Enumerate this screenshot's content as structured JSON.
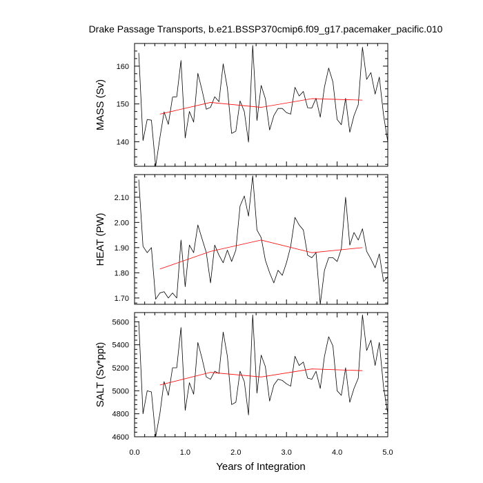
{
  "title": "Drake Passage Transports, b.e21.BSSP370cmip6.f09_g17.pacemaker_pacific.010",
  "colors": {
    "raw": "#000000",
    "smooth": "#ff0000",
    "frame": "#000000"
  },
  "chart_data": {
    "type": "line",
    "shared_x": {
      "label": "Years of Integration",
      "range": [
        0,
        5
      ],
      "ticks": [
        0,
        1,
        2,
        3,
        4,
        5
      ],
      "tick_labels": [
        "0.0",
        "1.0",
        "2.0",
        "3.0",
        "4.0",
        "5.0"
      ]
    },
    "panels": [
      {
        "ylabel": "MASS (Sv)",
        "ylim": [
          133.5,
          166
        ],
        "yticks": [
          140,
          150,
          160
        ],
        "ytick_labels": [
          "140",
          "150",
          "160"
        ],
        "series": [
          {
            "name": "raw",
            "x": [
              0.083,
              0.167,
              0.25,
              0.333,
              0.417,
              0.5,
              0.583,
              0.667,
              0.75,
              0.833,
              0.917,
              1.0,
              1.083,
              1.167,
              1.25,
              1.333,
              1.417,
              1.5,
              1.583,
              1.667,
              1.75,
              1.833,
              1.917,
              2.0,
              2.083,
              2.167,
              2.25,
              2.333,
              2.417,
              2.5,
              2.583,
              2.667,
              2.75,
              2.833,
              2.917,
              3.0,
              3.083,
              3.167,
              3.25,
              3.333,
              3.417,
              3.5,
              3.583,
              3.667,
              3.75,
              3.833,
              3.917,
              4.0,
              4.083,
              4.167,
              4.25,
              4.333,
              4.417,
              4.5,
              4.583,
              4.667,
              4.75,
              4.833,
              4.917,
              5.0
            ],
            "values": [
              163.5,
              140.3,
              145.9,
              145.7,
              133.5,
              141.0,
              147.9,
              144.6,
              151.8,
              151.9,
              161.5,
              141.0,
              148.0,
              145.2,
              158.1,
              153.6,
              148.6,
              149.1,
              151.9,
              150.6,
              160.6,
              154.2,
              142.2,
              142.8,
              150.8,
              148.0,
              139.9,
              165.5,
              145.6,
              154.9,
              151.4,
              143.1,
              146.9,
              148.8,
              148.8,
              147.7,
              147.3,
              154.4,
              152.1,
              153.3,
              149.0,
              148.9,
              151.5,
              146.5,
              154.5,
              159.5,
              155.8,
              145.9,
              144.5,
              151.5,
              142.5,
              146.9,
              149.8,
              165.0,
              156.5,
              158.3,
              152.6,
              157.1,
              147.0,
              140.0
            ]
          },
          {
            "name": "smoothed",
            "x": [
              0.5,
              1.5,
              2.5,
              3.5,
              4.5
            ],
            "values": [
              147.3,
              150.4,
              149.1,
              151.4,
              151.0
            ]
          }
        ]
      },
      {
        "ylabel": "HEAT (PW)",
        "ylim": [
          1.675,
          2.19
        ],
        "yticks": [
          1.7,
          1.8,
          1.9,
          2.0,
          2.1
        ],
        "ytick_labels": [
          "1.70",
          "1.80",
          "1.90",
          "2.00",
          "2.10"
        ],
        "series": [
          {
            "name": "raw",
            "x": [
              0.083,
              0.167,
              0.25,
              0.333,
              0.417,
              0.5,
              0.583,
              0.667,
              0.75,
              0.833,
              0.917,
              1.0,
              1.083,
              1.167,
              1.25,
              1.333,
              1.417,
              1.5,
              1.583,
              1.667,
              1.75,
              1.833,
              1.917,
              2.0,
              2.083,
              2.167,
              2.25,
              2.333,
              2.417,
              2.5,
              2.583,
              2.667,
              2.75,
              2.833,
              2.917,
              3.0,
              3.083,
              3.167,
              3.25,
              3.333,
              3.417,
              3.5,
              3.583,
              3.667,
              3.75,
              3.833,
              3.917,
              4.0,
              4.083,
              4.167,
              4.25,
              4.333,
              4.417,
              4.5,
              4.583,
              4.667,
              4.75,
              4.833,
              4.917,
              5.0
            ],
            "values": [
              2.17,
              1.905,
              1.88,
              1.9,
              1.695,
              1.72,
              1.725,
              1.7,
              1.72,
              1.7,
              1.93,
              1.745,
              1.91,
              1.88,
              1.99,
              1.935,
              1.88,
              1.76,
              1.91,
              1.87,
              1.84,
              1.89,
              1.845,
              1.89,
              2.065,
              2.105,
              2.025,
              2.185,
              1.97,
              1.94,
              1.85,
              1.8,
              1.76,
              1.81,
              1.79,
              1.84,
              1.905,
              2.02,
              1.99,
              1.97,
              1.87,
              1.86,
              1.88,
              1.675,
              1.81,
              1.86,
              1.86,
              1.845,
              1.895,
              2.1,
              1.91,
              1.96,
              1.93,
              1.975,
              1.885,
              1.855,
              1.82,
              1.875,
              1.765,
              1.785
            ]
          },
          {
            "name": "smoothed",
            "x": [
              0.5,
              1.5,
              2.5,
              3.5,
              4.5
            ],
            "values": [
              1.815,
              1.885,
              1.93,
              1.88,
              1.9
            ]
          }
        ]
      },
      {
        "ylabel": "SALT (Sv*ppt)",
        "ylim": [
          4600,
          5680
        ],
        "yticks": [
          4600,
          4800,
          5000,
          5200,
          5400,
          5600
        ],
        "ytick_labels": [
          "4600",
          "4800",
          "5000",
          "5200",
          "5400",
          "5600"
        ],
        "series": [
          {
            "name": "raw",
            "x": [
              0.083,
              0.167,
              0.25,
              0.333,
              0.417,
              0.5,
              0.583,
              0.667,
              0.75,
              0.833,
              0.917,
              1.0,
              1.083,
              1.167,
              1.25,
              1.333,
              1.417,
              1.5,
              1.583,
              1.667,
              1.75,
              1.833,
              1.917,
              2.0,
              2.083,
              2.167,
              2.25,
              2.333,
              2.417,
              2.5,
              2.583,
              2.667,
              2.75,
              2.833,
              2.917,
              3.0,
              3.083,
              3.167,
              3.25,
              3.333,
              3.417,
              3.5,
              3.583,
              3.667,
              3.75,
              3.833,
              3.917,
              4.0,
              4.083,
              4.167,
              4.25,
              4.333,
              4.417,
              4.5,
              4.583,
              4.667,
              4.75,
              4.833,
              4.917,
              5.0
            ],
            "values": [
              5600,
              4800,
              5000,
              4990,
              4600,
              4800,
              5080,
              4960,
              5200,
              5200,
              5550,
              4830,
              5070,
              4970,
              5420,
              5280,
              5120,
              5100,
              5170,
              5150,
              5510,
              5300,
              4880,
              4900,
              5170,
              5080,
              4790,
              5660,
              4980,
              5310,
              5210,
              4910,
              5050,
              5100,
              5090,
              5060,
              5040,
              5300,
              5220,
              5250,
              5110,
              5100,
              5170,
              5020,
              5300,
              5470,
              5390,
              5000,
              4960,
              5200,
              4900,
              5020,
              5110,
              5660,
              5350,
              5440,
              5220,
              5420,
              5030,
              4800
            ]
          },
          {
            "name": "smoothed",
            "x": [
              0.5,
              1.5,
              2.5,
              3.5,
              4.5
            ],
            "values": [
              5050,
              5160,
              5120,
              5190,
              5175
            ]
          }
        ]
      }
    ]
  }
}
